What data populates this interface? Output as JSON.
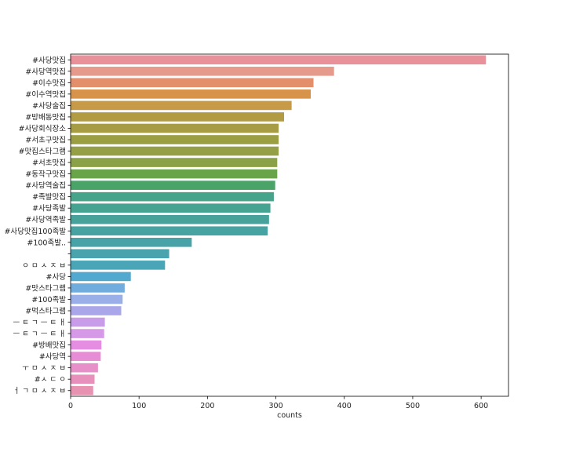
{
  "chart_data": {
    "type": "bar",
    "orientation": "horizontal",
    "xlabel": "counts",
    "ylabel": "",
    "title": "",
    "xlim": [
      0,
      640
    ],
    "xticks": [
      0,
      100,
      200,
      300,
      400,
      500,
      600
    ],
    "grid": false,
    "legend": "none",
    "categories": [
      "#사당맛집",
      "#사당역맛집",
      "#이수맛집",
      "#이수역맛집",
      "#사당술집",
      "#방배동맛집",
      "#사당회식장소",
      "#서초구맛집",
      "#맛집스타그램",
      "#서초맛집",
      "#동작구맛집",
      "#사당역술집",
      "#족발맛집",
      "#사당족발",
      "#사당역족발",
      "#사당맛집100족발",
      "#100족발..",
      "",
      "ㅇ ㅁ ㅅ ㅈ ㅂ",
      "#사당",
      "#맛스타그램",
      "#100족발",
      "#먹스타그램",
      "ㅡ ㅌ ㄱ ㅡ ㅌ ㅐ",
      "ㅡ ㅌ ㄱ ㅡ ㅌ ㅐ",
      "#방배맛집",
      "#사당역",
      "ㅜ ㅁ ㅅ ㅈ ㅂ",
      "#ㅅ ㄷ ㅇ",
      "ㅓ ㄱ ㅁ ㅅ ㅈ ㅂ"
    ],
    "values": [
      607,
      385,
      355,
      351,
      323,
      312,
      304,
      304,
      304,
      302,
      302,
      299,
      297,
      292,
      290,
      288,
      177,
      144,
      138,
      88,
      79,
      76,
      74,
      50,
      49,
      45,
      44,
      40,
      35,
      33
    ],
    "colors": [
      "#e8919a",
      "#e69a8b",
      "#e38f6b",
      "#d8934b",
      "#c69a47",
      "#b29c43",
      "#a59c43",
      "#9c9e44",
      "#959f45",
      "#8ba147",
      "#69a44a",
      "#4aa467",
      "#46a48a",
      "#46a392",
      "#46a29b",
      "#47a2a2",
      "#48a3a8",
      "#49a4ae",
      "#4aa5b6",
      "#52a9cf",
      "#71acdf",
      "#9aaee8",
      "#a9a7ea",
      "#c99ce9",
      "#d699e8",
      "#e48de1",
      "#e68dd6",
      "#e68fc9",
      "#e890bc",
      "#e892b2"
    ]
  }
}
